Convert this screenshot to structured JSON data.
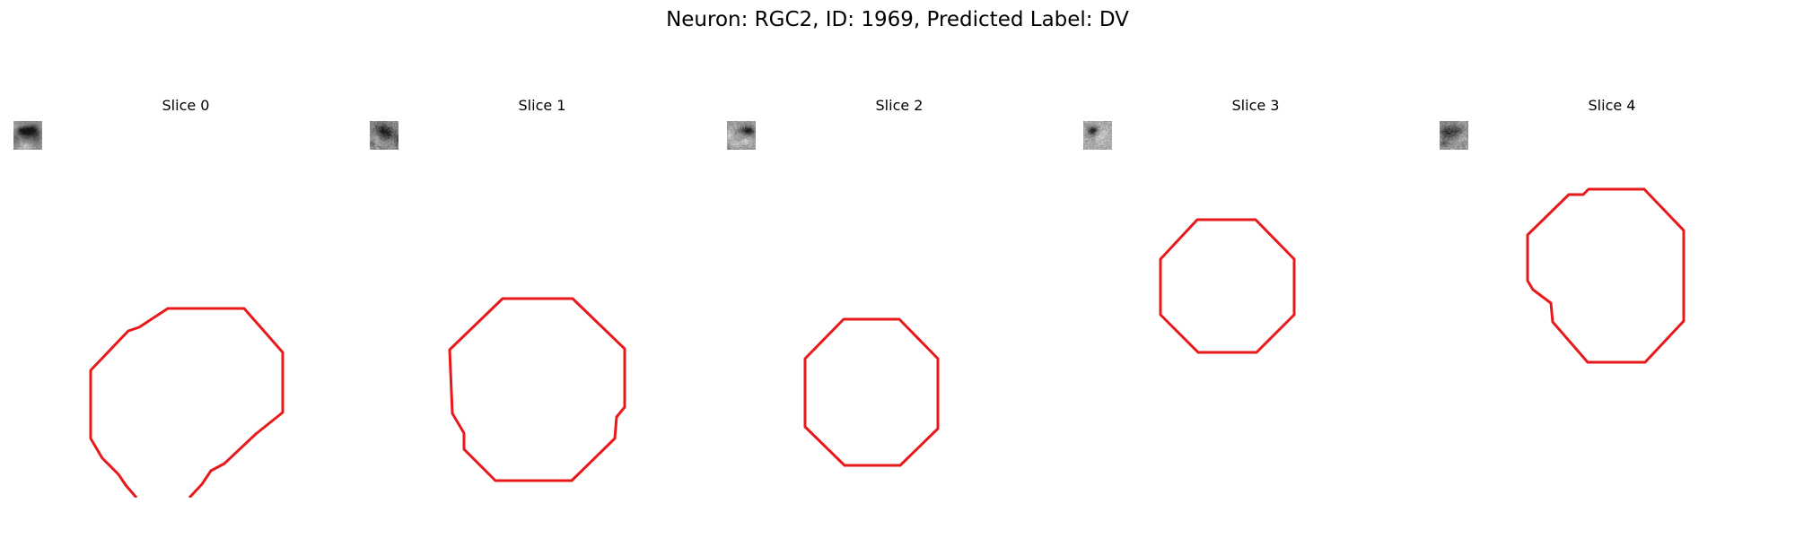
{
  "figure": {
    "title": "Neuron: RGC2, ID: 1969, Predicted Label: DV",
    "contour_color": "#e8191b"
  },
  "panels": [
    {
      "title": "Slice 0"
    },
    {
      "title": "Slice 1"
    },
    {
      "title": "Slice 2"
    },
    {
      "title": "Slice 3"
    },
    {
      "title": "Slice 4"
    }
  ]
}
